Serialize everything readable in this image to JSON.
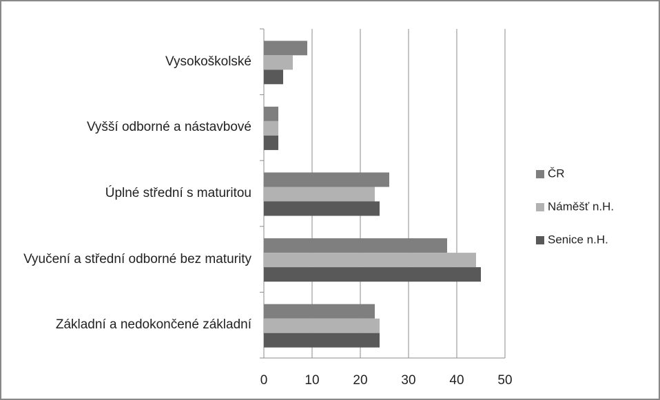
{
  "chart_data": {
    "type": "barh",
    "categories": [
      "Vysokoškolské",
      "Vyšší odborné a nástavbové",
      "Úplné střední s maturitou",
      "Vyučení a střední odborné bez maturity",
      "Základní a nedokončené základní"
    ],
    "series": [
      {
        "name": "ČR",
        "color": "#7f7f7f",
        "values": [
          9,
          3,
          26,
          38,
          23
        ]
      },
      {
        "name": "Náměšť n.H.",
        "color": "#b2b2b2",
        "values": [
          6,
          3,
          23,
          44,
          24
        ]
      },
      {
        "name": "Senice n.H.",
        "color": "#595959",
        "values": [
          4,
          3,
          24,
          45,
          24
        ]
      }
    ],
    "xlim": [
      0,
      50
    ],
    "xticks": [
      0,
      10,
      20,
      30,
      40,
      50
    ],
    "grid": true,
    "legend": "right"
  }
}
